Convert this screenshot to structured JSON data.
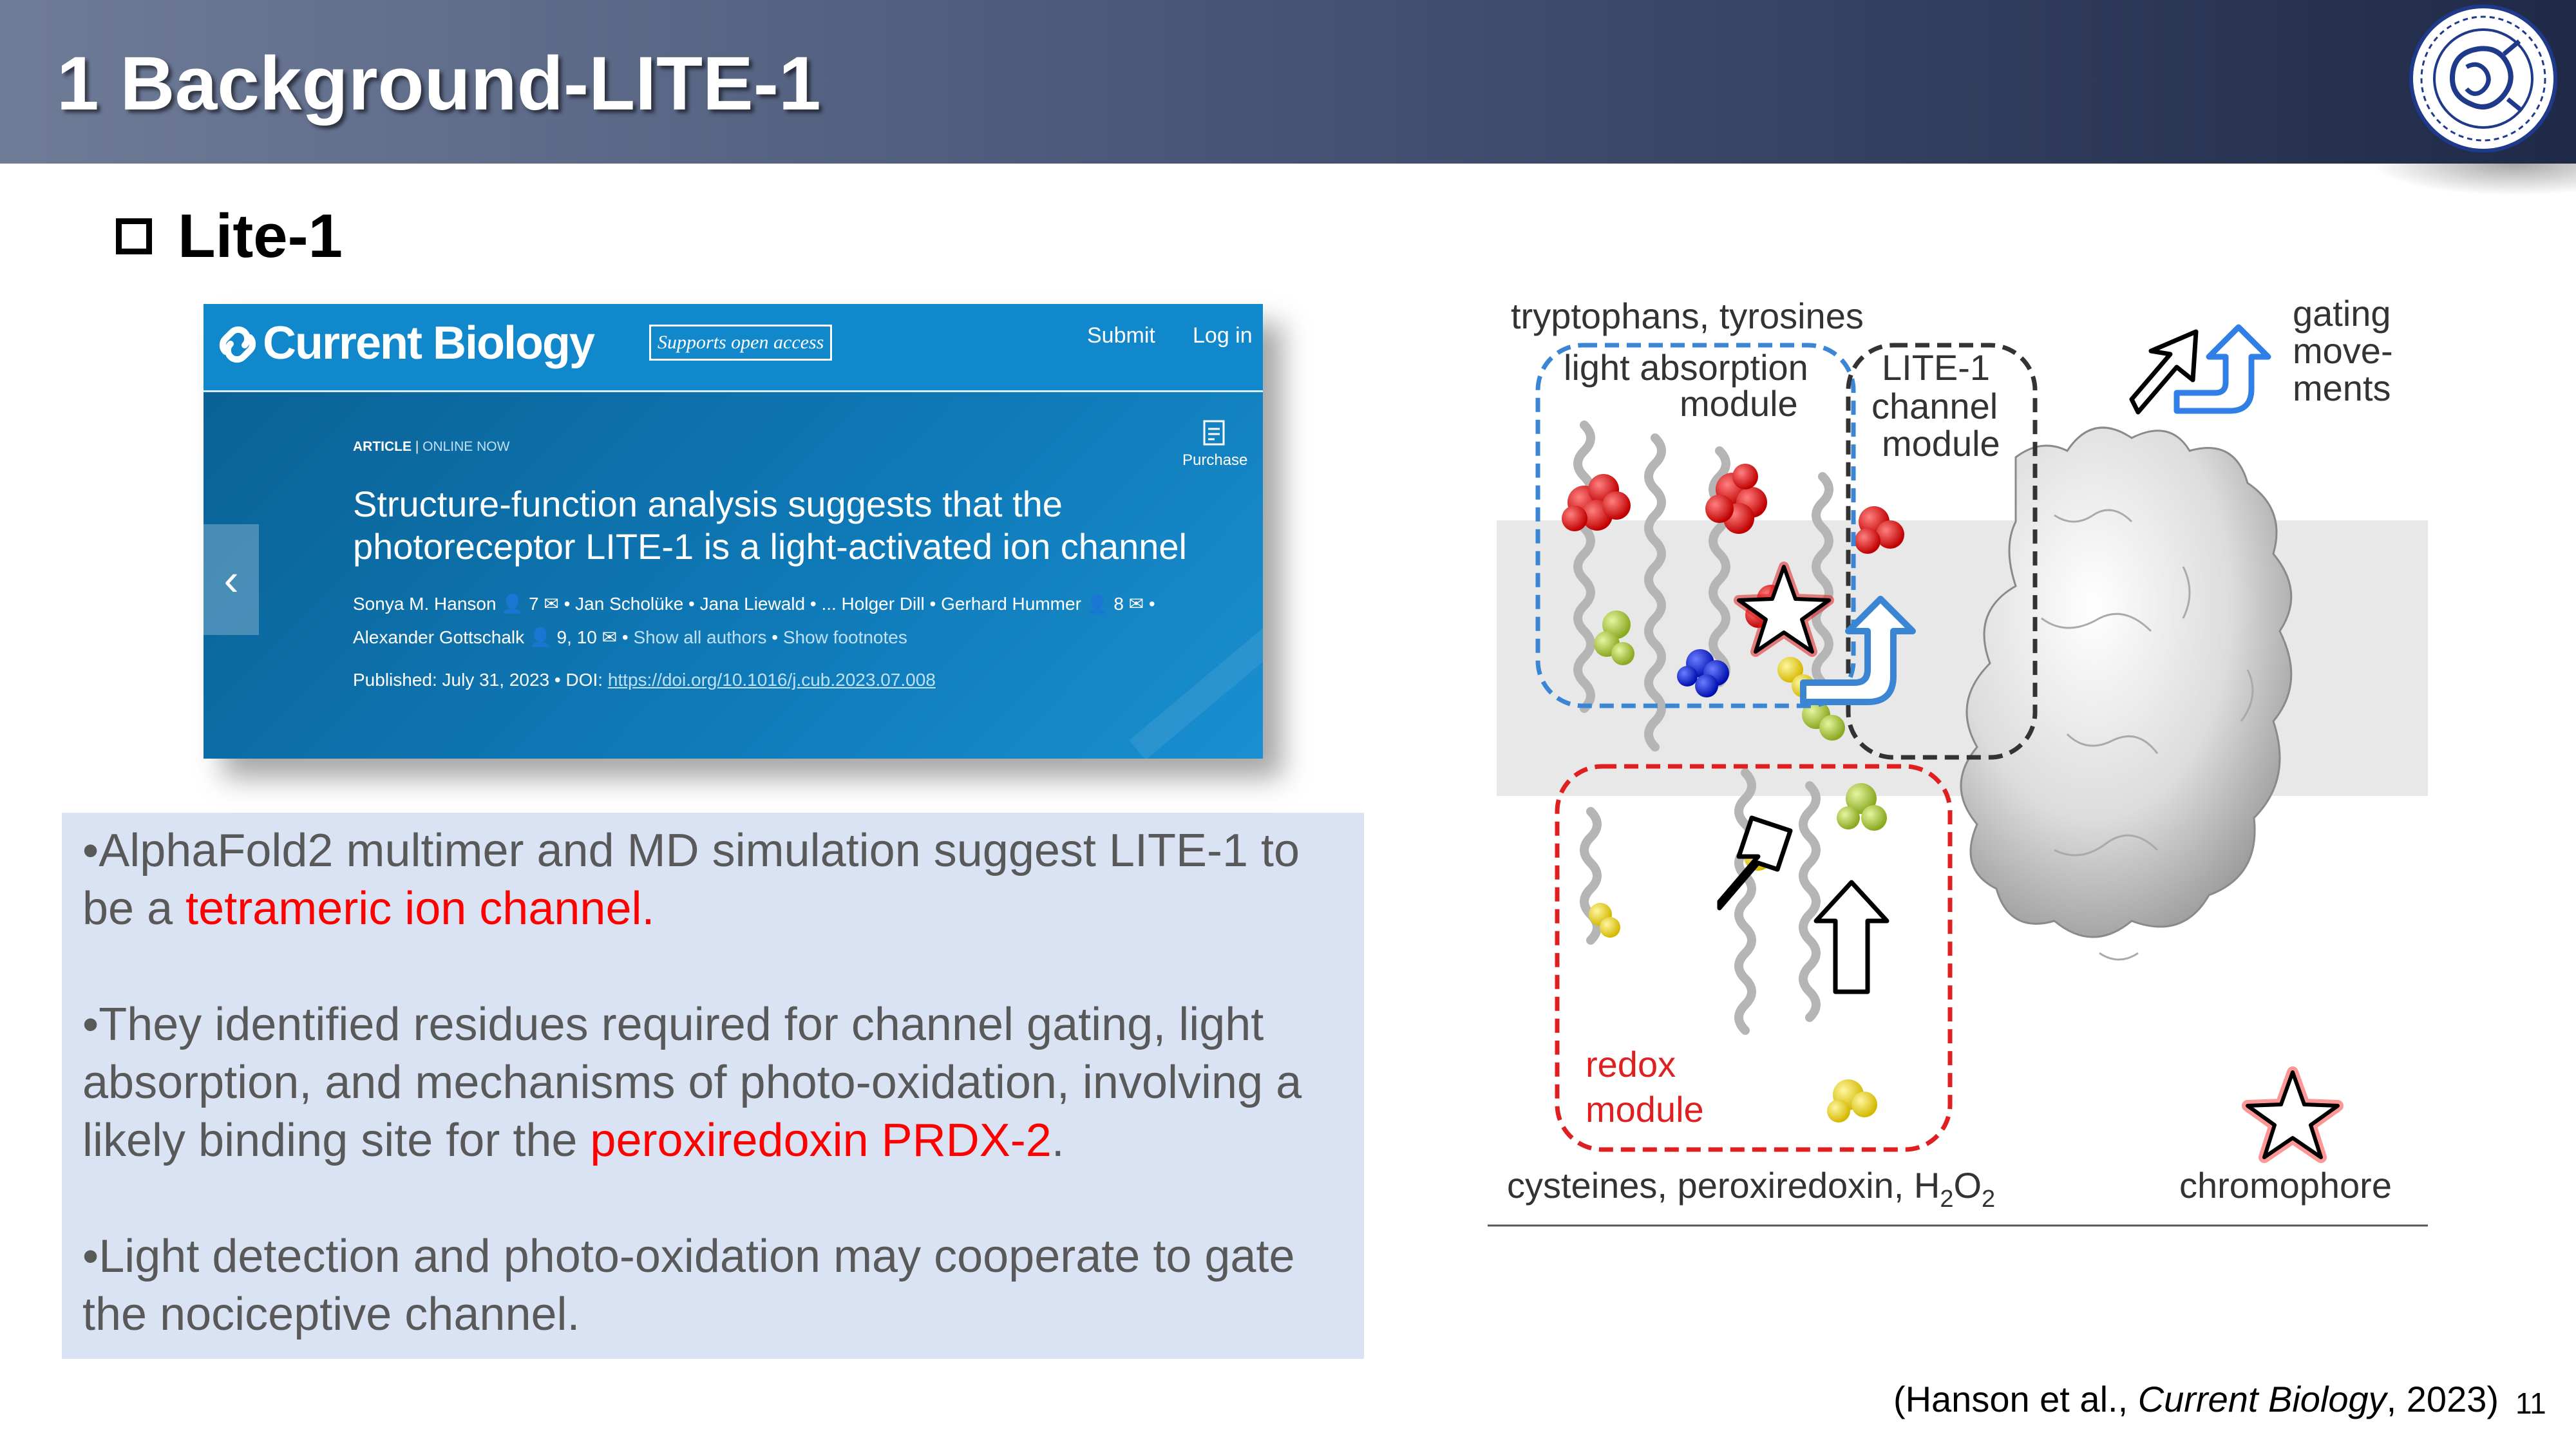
{
  "header": {
    "title": "1 Background-LITE-1",
    "logo": "university-seal"
  },
  "section": {
    "title": "Lite-1"
  },
  "article_screenshot": {
    "brand": "Current Biology",
    "badge": "Supports open access",
    "nav": {
      "submit": "Submit",
      "login": "Log in"
    },
    "article_type": "ARTICLE",
    "article_status": "ONLINE NOW",
    "purchase": "Purchase",
    "headline": "Structure-function analysis suggests that the photoreceptor LITE-1 is a light-activated ion channel",
    "authors_line1": "Sonya M. Hanson 👤 7 ✉ • Jan Scholüke • Jana Liewald • ... Holger Dill • Gerhard Hummer 👤 8 ✉ •",
    "authors_line2": "Alexander Gottschalk 👤 9, 10 ✉ •",
    "show_all_authors": "Show all authors",
    "show_footnotes": "Show footnotes",
    "published_label": "Published: July 31, 2023 • DOI:",
    "doi": "https://doi.org/10.1016/j.cub.2023.07.008"
  },
  "bullets": {
    "b1_pre": "•AlphaFold2 multimer and MD simulation suggest LITE-1 to be a ",
    "b1_red": "tetrameric ion channel.",
    "b2_pre": "•They identified residues required for channel gating, light absorption, and mechanisms of photo-oxidation, involving a likely binding site for the ",
    "b2_red": "peroxiredoxin PRDX-2",
    "b2_post": ".",
    "b3": "•Light detection and photo-oxidation may cooperate to gate the nociceptive channel."
  },
  "figure": {
    "label_tryptophans": "tryptophans, tyrosines",
    "label_light_absorption": "light absorption",
    "label_module": "module",
    "label_lite1": "LITE-1",
    "label_channel": "channel",
    "label_channel_module": "module",
    "label_gating": "gating",
    "label_move": "move-",
    "label_ments": "ments",
    "label_redox": "redox",
    "label_redox_module": "module",
    "label_cysteines": "cysteines, peroxiredoxin, H",
    "label_h2o2_sub1": "2",
    "label_h2o2_o": "O",
    "label_h2o2_sub2": "2",
    "label_chromophore": "chromophore"
  },
  "citation": {
    "pre": "(Hanson et al., ",
    "journal": "Current Biology",
    "post": ", 2023)"
  },
  "page_number": "11"
}
